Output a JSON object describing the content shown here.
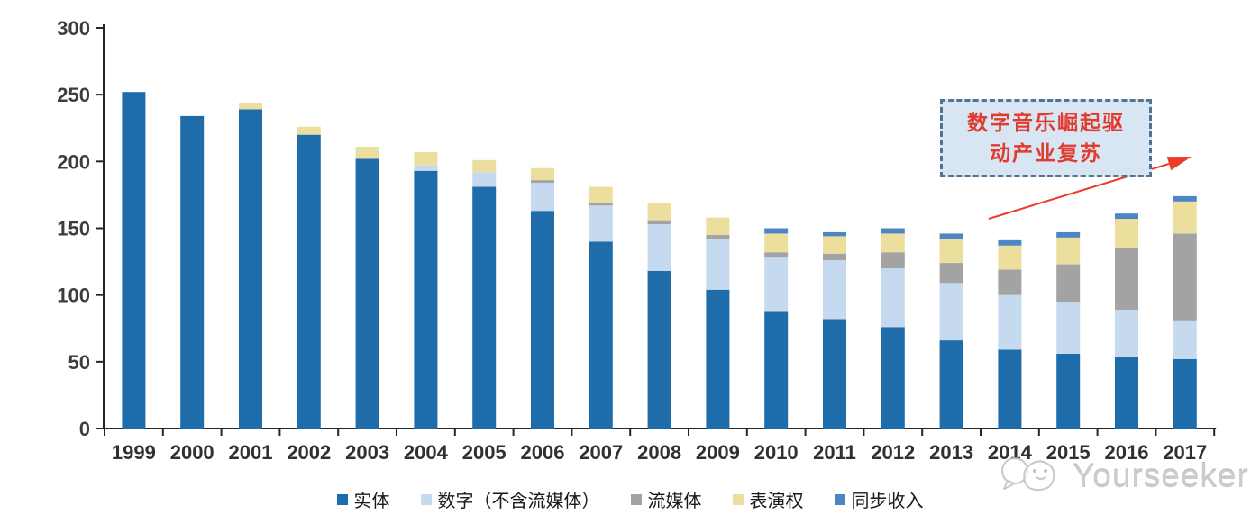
{
  "watermark": {
    "text": "Yourseeker",
    "icon": "yourseeker-logo-icon"
  },
  "annotation": {
    "line1": "数字音乐崛起驱",
    "line2": "动产业复苏",
    "text_color": "#e13b2f",
    "border_color": "#54738f",
    "fill_color": "#d8e6f3",
    "arrow_color": "#ee3b28"
  },
  "colors": {
    "axis": "#262626",
    "tick_label": "#3d3d3d",
    "background": "#ffffff"
  },
  "chart_data": {
    "type": "bar",
    "stacked": true,
    "title": "",
    "xlabel": "",
    "ylabel": "",
    "grid": false,
    "legend_position": "bottom",
    "categories": [
      "1999",
      "2000",
      "2001",
      "2002",
      "2003",
      "2004",
      "2005",
      "2006",
      "2007",
      "2008",
      "2009",
      "2010",
      "2011",
      "2012",
      "2013",
      "2014",
      "2015",
      "2016",
      "2017"
    ],
    "series": [
      {
        "name": "实体",
        "color": "#1f6cab",
        "values": [
          252,
          234,
          239,
          220,
          202,
          193,
          181,
          163,
          140,
          118,
          104,
          88,
          82,
          76,
          66,
          59,
          56,
          54,
          52
        ]
      },
      {
        "name": "数字（不含流媒体）",
        "color": "#c5daee",
        "values": [
          0,
          0,
          0,
          0,
          0,
          4,
          11,
          21,
          27,
          35,
          38,
          40,
          44,
          44,
          43,
          41,
          39,
          35,
          29
        ]
      },
      {
        "name": "流媒体",
        "color": "#a3a3a3",
        "values": [
          0,
          0,
          0,
          0,
          0,
          0,
          0,
          2,
          2,
          3,
          3,
          4,
          5,
          12,
          15,
          19,
          28,
          46,
          65
        ]
      },
      {
        "name": "表演权",
        "color": "#ecdf9d",
        "values": [
          0,
          0,
          5,
          6,
          9,
          10,
          9,
          9,
          12,
          13,
          13,
          14,
          13,
          14,
          18,
          18,
          20,
          22,
          24
        ]
      },
      {
        "name": "同步收入",
        "color": "#4e86c5",
        "values": [
          0,
          0,
          0,
          0,
          0,
          0,
          0,
          0,
          0,
          0,
          0,
          4,
          3,
          4,
          4,
          4,
          4,
          4,
          4
        ]
      }
    ],
    "y_axis": {
      "min": 0,
      "max": 300,
      "step": 50,
      "tick_labels": [
        "0",
        "50",
        "100",
        "150",
        "200",
        "250",
        "300"
      ]
    }
  }
}
